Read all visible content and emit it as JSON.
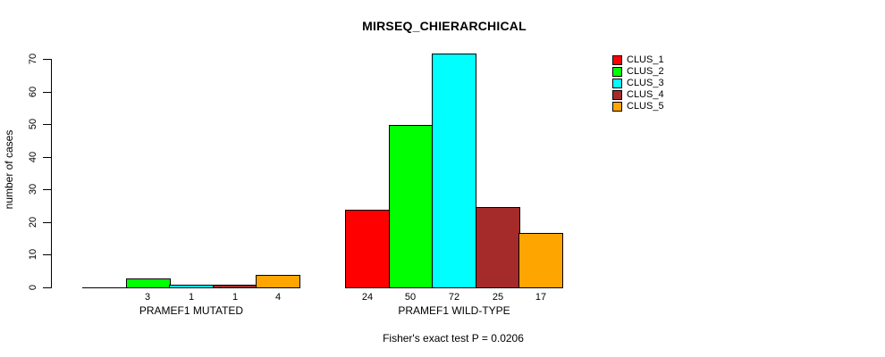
{
  "chart_data": {
    "type": "bar",
    "title": "MIRSEQ_CHIERARCHICAL",
    "xlabel": "",
    "ylabel": "number of cases",
    "categories": [
      "PRAMEF1 MUTATED",
      "PRAMEF1 WILD-TYPE"
    ],
    "series": [
      {
        "name": "CLUS_1",
        "color": "#FF0000",
        "values": [
          0,
          24
        ]
      },
      {
        "name": "CLUS_2",
        "color": "#00FF00",
        "values": [
          3,
          50
        ]
      },
      {
        "name": "CLUS_3",
        "color": "#00FFFF",
        "values": [
          1,
          72
        ]
      },
      {
        "name": "CLUS_4",
        "color": "#A52A2A",
        "values": [
          1,
          25
        ]
      },
      {
        "name": "CLUS_5",
        "color": "#FFA500",
        "values": [
          4,
          17
        ]
      }
    ],
    "ylim": [
      0,
      72
    ],
    "yticks": [
      0,
      10,
      20,
      30,
      40,
      50,
      60,
      70
    ],
    "grid": false,
    "legend_position": "top-right",
    "legend_entries": [
      "CLUS_1",
      "CLUS_2",
      "CLUS_3",
      "CLUS_4",
      "CLUS_5"
    ],
    "bar_value_labels_shown": true,
    "zero_values_unlabeled": true,
    "annotation": "Fisher's exact test P = 0.0206"
  }
}
